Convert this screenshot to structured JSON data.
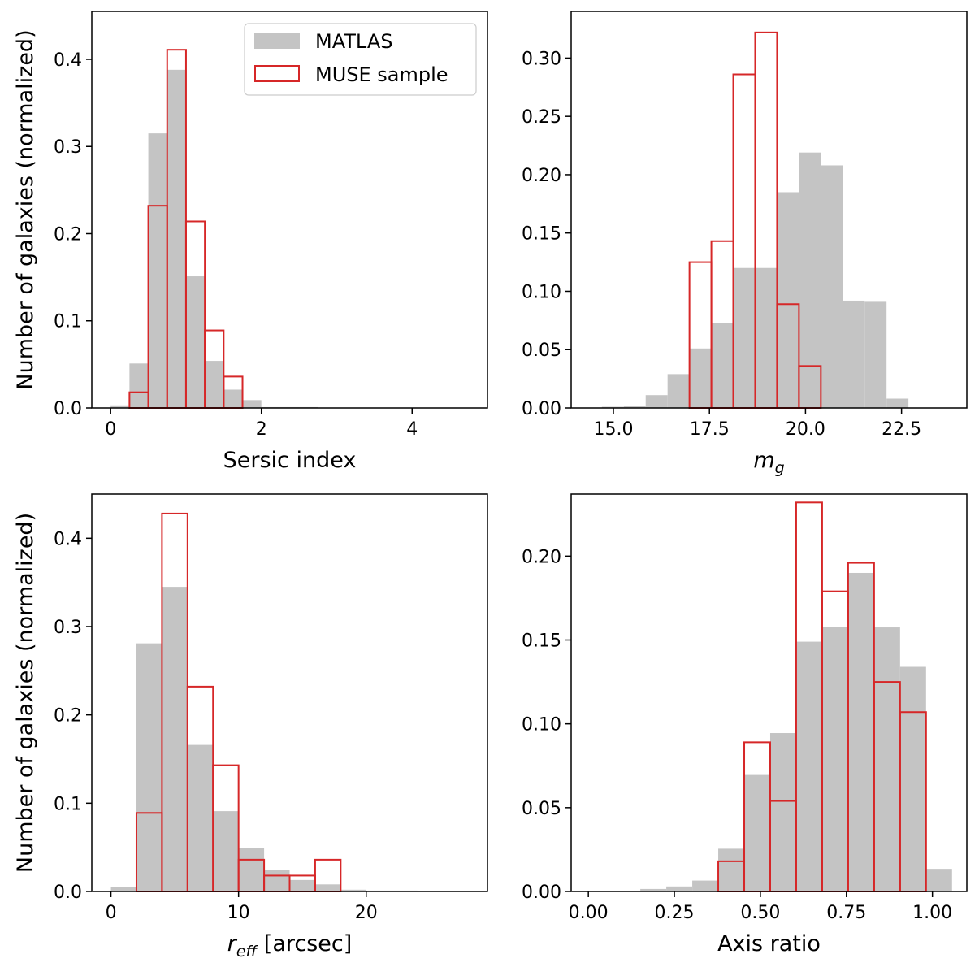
{
  "colors": {
    "matlas_fill": "#c4c4c4",
    "muse_edge": "#d62728",
    "axes": "#000000"
  },
  "legend": {
    "location": "upper right of first panel",
    "items": [
      {
        "label": "MATLAS",
        "style": "gray-filled"
      },
      {
        "label": "MUSE sample",
        "style": "red-outline"
      }
    ]
  },
  "chart_data": [
    {
      "type": "bar",
      "xlabel": "Sersic index",
      "ylabel": "Number of galaxies (normalized)",
      "xlim": [
        -0.25,
        5.0
      ],
      "ylim": [
        0,
        0.455
      ],
      "xticks": [
        0,
        2,
        4
      ],
      "yticks": [
        0.0,
        0.1,
        0.2,
        0.3,
        0.4
      ],
      "ytick_labels": [
        "0.0",
        "0.1",
        "0.2",
        "0.3",
        "0.4"
      ],
      "bin_edges": [
        0.0,
        0.25,
        0.5,
        0.75,
        1.0,
        1.25,
        1.5,
        1.75,
        2.0,
        2.25,
        2.5,
        2.75
      ],
      "series": [
        {
          "name": "MATLAS",
          "values": [
            0.003,
            0.051,
            0.315,
            0.388,
            0.151,
            0.054,
            0.021,
            0.009,
            0.001,
            0.001,
            0.001
          ]
        },
        {
          "name": "MUSE sample",
          "values": [
            0,
            0.018,
            0.232,
            0.411,
            0.214,
            0.089,
            0.036,
            0,
            0,
            0,
            0
          ]
        }
      ]
    },
    {
      "type": "bar",
      "xlabel": "m_g",
      "xlabel_main": "m",
      "xlabel_sub": "g",
      "ylabel": "",
      "xlim": [
        13.9,
        24.2
      ],
      "ylim": [
        0,
        0.34
      ],
      "xticks": [
        15.0,
        17.5,
        20.0,
        22.5
      ],
      "xtick_labels": [
        "15.0",
        "17.5",
        "20.0",
        "22.5"
      ],
      "yticks": [
        0.0,
        0.05,
        0.1,
        0.15,
        0.2,
        0.25,
        0.3
      ],
      "ytick_labels": [
        "0.00",
        "0.05",
        "0.10",
        "0.15",
        "0.20",
        "0.25",
        "0.30"
      ],
      "bin_edges": [
        14.7,
        15.27,
        15.84,
        16.41,
        16.98,
        17.55,
        18.12,
        18.69,
        19.26,
        19.83,
        20.4,
        20.97,
        21.54,
        22.11,
        22.68
      ],
      "series": [
        {
          "name": "MATLAS",
          "values": [
            0.001,
            0.002,
            0.011,
            0.029,
            0.051,
            0.073,
            0.12,
            0.12,
            0.185,
            0.219,
            0.208,
            0.092,
            0.091,
            0.008
          ]
        },
        {
          "name": "MUSE sample",
          "values": [
            0,
            0,
            0,
            0,
            0.125,
            0.143,
            0.286,
            0.322,
            0.089,
            0.036,
            0,
            0,
            0,
            0
          ]
        }
      ]
    },
    {
      "type": "bar",
      "xlabel": "r_eff [arcsec]",
      "xlabel_main": "r",
      "xlabel_sub": "eff",
      "xlabel_rest": " [arcsec]",
      "ylabel": "Number of galaxies (normalized)",
      "xlim": [
        -1.5,
        29.5
      ],
      "ylim": [
        0,
        0.45
      ],
      "xticks": [
        0,
        10,
        20
      ],
      "yticks": [
        0.0,
        0.1,
        0.2,
        0.3,
        0.4
      ],
      "ytick_labels": [
        "0.0",
        "0.1",
        "0.2",
        "0.3",
        "0.4"
      ],
      "bin_edges": [
        0,
        2,
        4,
        6,
        8,
        10,
        12,
        14,
        16,
        18,
        20,
        22,
        24
      ],
      "series": [
        {
          "name": "MATLAS",
          "values": [
            0.005,
            0.281,
            0.345,
            0.166,
            0.091,
            0.049,
            0.024,
            0.013,
            0.008,
            0.002,
            0.001,
            0.001
          ]
        },
        {
          "name": "MUSE sample",
          "values": [
            0,
            0.089,
            0.428,
            0.232,
            0.143,
            0.036,
            0.018,
            0.018,
            0.036,
            0,
            0,
            0
          ]
        }
      ]
    },
    {
      "type": "bar",
      "xlabel": "Axis ratio",
      "ylabel": "",
      "xlim": [
        -0.05,
        1.1
      ],
      "ylim": [
        0,
        0.237
      ],
      "xticks": [
        0.0,
        0.25,
        0.5,
        0.75,
        1.0
      ],
      "xtick_labels": [
        "0.00",
        "0.25",
        "0.50",
        "0.75",
        "1.00"
      ],
      "yticks": [
        0.0,
        0.05,
        0.1,
        0.15,
        0.2
      ],
      "ytick_labels": [
        "0.00",
        "0.05",
        "0.10",
        "0.15",
        "0.20"
      ],
      "bin_edges": [
        0.0,
        0.0755,
        0.151,
        0.2265,
        0.302,
        0.3775,
        0.453,
        0.5285,
        0.604,
        0.6795,
        0.755,
        0.8305,
        0.906,
        0.9815,
        1.057
      ],
      "series": [
        {
          "name": "MATLAS",
          "values": [
            0.0,
            0.0,
            0.0015,
            0.003,
            0.0065,
            0.0255,
            0.0695,
            0.0945,
            0.149,
            0.158,
            0.19,
            0.1575,
            0.134,
            0.0135
          ]
        },
        {
          "name": "MUSE sample",
          "values": [
            0,
            0,
            0,
            0,
            0,
            0.018,
            0.089,
            0.054,
            0.232,
            0.179,
            0.196,
            0.125,
            0.107,
            0
          ]
        }
      ]
    }
  ]
}
